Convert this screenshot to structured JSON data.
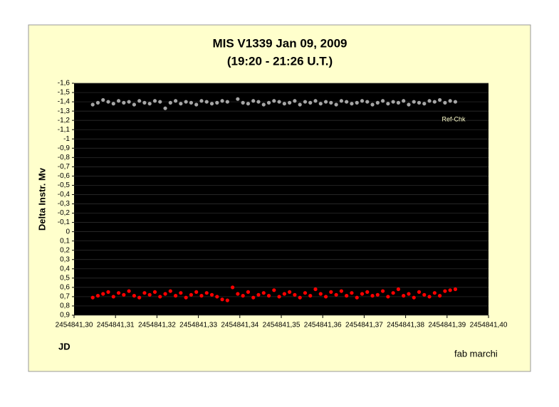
{
  "chart_data": {
    "type": "scatter",
    "title": "MIS V1339 Jan 09, 2009",
    "subtitle": "(19:20 - 21:26 U.T.)",
    "y_label": "Delta Instr. Mv",
    "x_label": "JD",
    "credit": "fab marchi",
    "y_inverted": true,
    "grid": true,
    "legend": "top-right",
    "ylim": [
      -1.6,
      0.9
    ],
    "yticks": [
      {
        "value": -1.6,
        "label": "-1,6"
      },
      {
        "value": -1.5,
        "label": "-1,5"
      },
      {
        "value": -1.4,
        "label": "-1,4"
      },
      {
        "value": -1.3,
        "label": "-1,3"
      },
      {
        "value": -1.2,
        "label": "-1,2"
      },
      {
        "value": -1.1,
        "label": "-1,1"
      },
      -1,
      {
        "value": -0.9,
        "label": "-0,9"
      },
      {
        "value": -0.8,
        "label": "-0,8"
      },
      {
        "value": -0.7,
        "label": "-0,7"
      },
      {
        "value": -0.6,
        "label": "-0,6"
      },
      {
        "value": -0.5,
        "label": "-0,5"
      },
      {
        "value": -0.4,
        "label": "-0,4"
      },
      {
        "value": -0.3,
        "label": "-0,3"
      },
      {
        "value": -0.2,
        "label": "-0,2"
      },
      {
        "value": -0.1,
        "label": "-0,1"
      },
      0,
      {
        "value": 0.1,
        "label": "0,1"
      },
      {
        "value": 0.2,
        "label": "0,2"
      },
      {
        "value": 0.3,
        "label": "0,3"
      },
      {
        "value": 0.4,
        "label": "0,4"
      },
      {
        "value": 0.5,
        "label": "0,5"
      },
      {
        "value": 0.6,
        "label": "0,6"
      },
      {
        "value": 0.7,
        "label": "0,7"
      },
      {
        "value": 0.8,
        "label": "0,8"
      },
      {
        "value": 0.9,
        "label": "0,9"
      }
    ],
    "xlim": [
      2454841.3,
      2454841.4
    ],
    "xticks": [
      {
        "value": 2454841.3,
        "label": "2454841,30"
      },
      {
        "value": 2454841.31,
        "label": "2454841,31"
      },
      {
        "value": 2454841.32,
        "label": "2454841,32"
      },
      {
        "value": 2454841.33,
        "label": "2454841,33"
      },
      {
        "value": 2454841.34,
        "label": "2454841,34"
      },
      {
        "value": 2454841.35,
        "label": "2454841,35"
      },
      {
        "value": 2454841.36,
        "label": "2454841,36"
      },
      {
        "value": 2454841.37,
        "label": "2454841,37"
      },
      {
        "value": 2454841.38,
        "label": "2454841,38"
      },
      {
        "value": 2454841.39,
        "label": "2454841,39"
      },
      {
        "value": 2454841.4,
        "label": "2454841,40"
      }
    ],
    "x": [
      2454841.3045,
      2454841.30575,
      2454841.307,
      2454841.30825,
      2454841.3095,
      2454841.31075,
      2454841.312,
      2454841.31325,
      2454841.3145,
      2454841.31575,
      2454841.317,
      2454841.31825,
      2454841.3195,
      2454841.32075,
      2454841.322,
      2454841.32325,
      2454841.3245,
      2454841.32575,
      2454841.327,
      2454841.32825,
      2454841.3295,
      2454841.33075,
      2454841.332,
      2454841.33325,
      2454841.3345,
      2454841.33575,
      2454841.337,
      2454841.33825,
      2454841.3395,
      2454841.34075,
      2454841.342,
      2454841.34325,
      2454841.3445,
      2454841.34575,
      2454841.347,
      2454841.34825,
      2454841.3495,
      2454841.35075,
      2454841.352,
      2454841.35325,
      2454841.3545,
      2454841.35575,
      2454841.357,
      2454841.35825,
      2454841.3595,
      2454841.36075,
      2454841.362,
      2454841.36325,
      2454841.3645,
      2454841.36575,
      2454841.367,
      2454841.36825,
      2454841.3695,
      2454841.37075,
      2454841.372,
      2454841.37325,
      2454841.3745,
      2454841.37575,
      2454841.377,
      2454841.37825,
      2454841.3795,
      2454841.38075,
      2454841.382,
      2454841.38325,
      2454841.3845,
      2454841.38575,
      2454841.387,
      2454841.38825,
      2454841.3895,
      2454841.39075,
      2454841.392
    ],
    "series": [
      {
        "name": "Ref-Chk",
        "color": "#a6a6a6",
        "values": [
          -1.37,
          -1.39,
          -1.42,
          -1.4,
          -1.38,
          -1.41,
          -1.39,
          -1.4,
          -1.37,
          -1.41,
          -1.39,
          -1.38,
          -1.41,
          -1.4,
          -1.33,
          -1.39,
          -1.41,
          -1.38,
          -1.4,
          -1.39,
          -1.37,
          -1.41,
          -1.4,
          -1.38,
          -1.39,
          -1.41,
          -1.4,
          null,
          -1.43,
          -1.39,
          -1.38,
          -1.41,
          -1.4,
          -1.37,
          -1.39,
          -1.41,
          -1.4,
          -1.38,
          -1.39,
          -1.41,
          -1.37,
          -1.4,
          -1.39,
          -1.41,
          -1.38,
          -1.4,
          -1.39,
          -1.37,
          -1.41,
          -1.4,
          -1.38,
          -1.39,
          -1.41,
          -1.4,
          -1.37,
          -1.39,
          -1.41,
          -1.38,
          -1.4,
          -1.39,
          -1.41,
          -1.37,
          -1.4,
          -1.39,
          -1.38,
          -1.41,
          -1.4,
          -1.42,
          -1.39,
          -1.41,
          -1.4
        ]
      },
      {
        "color": "#ff0000",
        "values": [
          0.71,
          0.69,
          0.67,
          0.65,
          0.7,
          0.66,
          0.68,
          0.64,
          0.69,
          0.71,
          0.66,
          0.68,
          0.65,
          0.7,
          0.67,
          0.64,
          0.69,
          0.66,
          0.71,
          0.68,
          0.65,
          0.69,
          0.66,
          0.68,
          0.7,
          0.73,
          0.74,
          0.6,
          0.67,
          0.69,
          0.65,
          0.71,
          0.68,
          0.66,
          0.69,
          0.63,
          0.7,
          0.67,
          0.65,
          0.68,
          0.71,
          0.66,
          0.69,
          0.62,
          0.67,
          0.7,
          0.65,
          0.68,
          0.64,
          0.69,
          0.66,
          0.71,
          0.67,
          0.65,
          0.69,
          0.68,
          0.64,
          0.7,
          0.66,
          0.62,
          0.69,
          0.67,
          0.71,
          0.65,
          0.68,
          0.7,
          0.66,
          0.69,
          0.64,
          0.63,
          0.62
        ]
      }
    ]
  }
}
